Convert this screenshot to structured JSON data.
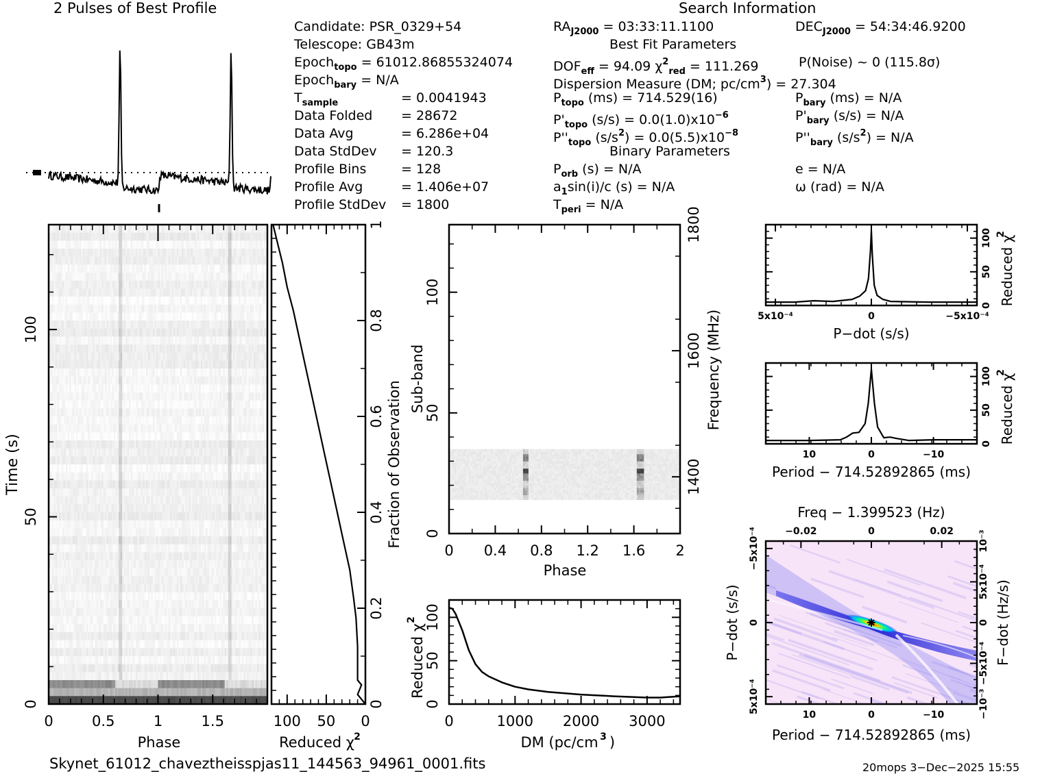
{
  "profile_title": "2 Pulses of Best Profile",
  "search_title": "Search Information",
  "candidate_info": [
    {
      "label": "Candidate:",
      "value": "PSR_0329+54"
    },
    {
      "label": "Telescope:",
      "value": "GB43m"
    },
    {
      "label": "Epoch",
      "sub": "topo",
      "value": "= 61012.86855324074"
    },
    {
      "label": "Epoch",
      "sub": "bary",
      "value": "= N/A"
    },
    {
      "label": "T",
      "sub": "sample",
      "value": "=   0.0041943"
    },
    {
      "label": "Data Folded",
      "value": "=   28672"
    },
    {
      "label": "Data Avg",
      "value": "=   6.286e+04"
    },
    {
      "label": "Data StdDev",
      "value": "=   120.3"
    },
    {
      "label": "Profile Bins",
      "value": "=   128"
    },
    {
      "label": "Profile Avg",
      "value": "=   1.406e+07"
    },
    {
      "label": "Profile StdDev",
      "value": "=   1800"
    }
  ],
  "search_info": {
    "ra": {
      "label": "RA",
      "sub": "J2000",
      "value": "= 03:33:11.1100"
    },
    "dec": {
      "label": "DEC",
      "sub": "J2000",
      "value": "= 54:34:46.9200"
    },
    "best_fit_title": "Best Fit Parameters",
    "dof": {
      "label": "DOF",
      "sub": "eff",
      "value": "= 94.09"
    },
    "chi2": {
      "label": "χ",
      "sup": "2",
      "sub": "red",
      "value": "= 111.269"
    },
    "pnoise": "P(Noise) ~ 0    (115.8σ)",
    "dm": {
      "label": "Dispersion Measure (DM; pc/cm",
      "sup": "3",
      "value": ") = 27.304"
    },
    "ptopo": {
      "label": "P",
      "sub": "topo",
      "value": " (ms) =  714.529(16)"
    },
    "pdtopo": {
      "label": "P'",
      "sub": "topo",
      "value": " (s/s) = 0.0(1.0)x10",
      "sup": "−6"
    },
    "pddtopo": {
      "label": "P''",
      "sub": "topo",
      "value": " (s/s",
      "sup2": "2",
      "value2": ") = 0.0(5.5)x10",
      "sup": "−8"
    },
    "pbary": {
      "label": "P",
      "sub": "bary",
      "value": " (ms) = N/A"
    },
    "pdbary": {
      "label": "P'",
      "sub": "bary",
      "value": " (s/s) = N/A"
    },
    "pddbary": {
      "label": "P''",
      "sub": "bary",
      "value": " (s/s",
      "sup2": "2",
      "value2": ") = N/A"
    },
    "binary_title": "Binary Parameters",
    "porb": {
      "label": "P",
      "sub": "orb",
      "value": " (s) = N/A"
    },
    "asini": {
      "label": "a",
      "sub": "1",
      "value": "sin(i)/c (s) = N/A"
    },
    "tperi": {
      "label": "T",
      "sub": "peri",
      "value": " = N/A"
    },
    "ecc": "e = N/A",
    "omega": "ω (rad) = N/A"
  },
  "footer": {
    "filename": "Skynet_61012_chaveztheisspjas11_144563_94961_0001.fits",
    "stamp": "20mops   3−Dec−2025 15:55"
  },
  "chart_data": [
    {
      "id": "time-phase",
      "type": "heatmap",
      "xlabel": "Phase",
      "ylabel": "Time (s)",
      "xlim": [
        0,
        2
      ],
      "ylim": [
        0,
        128
      ],
      "xticks": [
        "0",
        "0.5",
        "1",
        "1.5"
      ],
      "xtick_values": [
        0,
        0.5,
        1,
        1.5
      ],
      "yticks": [
        "0",
        "50",
        "100"
      ],
      "ytick_values": [
        0,
        50,
        100
      ],
      "pulse_phases": [
        0.65,
        1.65
      ]
    },
    {
      "id": "chi2-fraction",
      "type": "line",
      "xlabel": "Reduced χ²",
      "ylabel": "Fraction of Observation",
      "xlim": [
        120,
        0
      ],
      "ylim": [
        0,
        1
      ],
      "xticks": [
        "100",
        "50",
        "0"
      ],
      "xtick_values": [
        100,
        50,
        0
      ],
      "yticks": [
        "0",
        "0.2",
        "0.4",
        "0.6",
        "0.8",
        "1"
      ],
      "ytick_values": [
        0,
        0.2,
        0.4,
        0.6,
        0.8,
        1
      ],
      "x": [
        0,
        10,
        5,
        10,
        10,
        12,
        15,
        20,
        28,
        36,
        44,
        52,
        60,
        68,
        76,
        84,
        92,
        100,
        106,
        112,
        118
      ],
      "y": [
        0,
        0.02,
        0.04,
        0.05,
        0.12,
        0.18,
        0.22,
        0.28,
        0.34,
        0.4,
        0.46,
        0.52,
        0.58,
        0.64,
        0.7,
        0.76,
        0.82,
        0.87,
        0.92,
        0.96,
        1.0
      ]
    },
    {
      "id": "subband-phase",
      "type": "heatmap",
      "xlabel": "Phase",
      "ylabel": "Sub-band",
      "ylabel_right": "Frequency (MHz)",
      "xlim": [
        0,
        2
      ],
      "ylim": [
        0,
        128
      ],
      "xticks": [
        "0",
        "0.4",
        "0.8",
        "1.2",
        "1.6",
        "2"
      ],
      "xtick_values": [
        0,
        0.4,
        0.8,
        1.2,
        1.6,
        2
      ],
      "yticks": [
        "0",
        "50",
        "100"
      ],
      "ytick_values": [
        0,
        50,
        100
      ],
      "yticks_right": [
        "1400",
        "1600",
        "1800"
      ],
      "ytick_right_values": [
        1400,
        1600,
        1800
      ],
      "freq_range": [
        1310,
        1800
      ],
      "band_subbands": [
        14,
        35
      ],
      "pulse_phases": [
        0.65,
        1.65
      ]
    },
    {
      "id": "dm-chi2",
      "type": "line",
      "xlabel": "DM (pc/cm³)",
      "ylabel": "Reduced χ²",
      "xlim": [
        0,
        3500
      ],
      "ylim": [
        0,
        120
      ],
      "xticks": [
        "0",
        "1000",
        "2000",
        "3000"
      ],
      "xtick_values": [
        0,
        1000,
        2000,
        3000
      ],
      "yticks": [
        "0",
        "50",
        "100"
      ],
      "ytick_values": [
        0,
        50,
        100
      ],
      "x": [
        0,
        50,
        100,
        200,
        300,
        400,
        500,
        600,
        800,
        1000,
        1200,
        1500,
        2000,
        2500,
        3000,
        3200,
        3500
      ],
      "y": [
        111,
        110,
        104,
        85,
        62,
        46,
        37,
        32,
        25,
        20,
        17,
        14,
        11,
        9,
        7.5,
        7.5,
        9
      ]
    },
    {
      "id": "pdot-chi2",
      "type": "line",
      "xlabel": "P−dot (s/s)",
      "ylabel": "Reduced χ²",
      "xlim": [
        0.00055,
        -0.00055
      ],
      "ylim": [
        0,
        120
      ],
      "xticks": [
        "5x10⁻⁴",
        "0",
        "−5x10⁻⁴"
      ],
      "xtick_values": [
        0.0005,
        0,
        -0.0005
      ],
      "yticks": [
        "0",
        "50",
        "100"
      ],
      "ytick_values": [
        0,
        50,
        100
      ],
      "x": [
        0.00055,
        0.0004,
        0.0003,
        0.0002,
        0.0001,
        6e-05,
        3e-05,
        1.5e-05,
        5e-06,
        0,
        -5e-06,
        -1.5e-05,
        -3e-05,
        -6e-05,
        -0.0001,
        -0.0003,
        -0.00055
      ],
      "y": [
        5,
        5,
        7,
        6,
        9,
        14,
        22,
        40,
        80,
        111,
        75,
        30,
        15,
        9,
        6,
        5,
        5
      ]
    },
    {
      "id": "period-chi2",
      "type": "line",
      "xlabel": "Period − 714.52892865 (ms)",
      "ylabel": "Reduced χ²",
      "xlim": [
        17,
        -17
      ],
      "ylim": [
        0,
        120
      ],
      "xticks": [
        "10",
        "0",
        "−10"
      ],
      "xtick_values": [
        10,
        0,
        -10
      ],
      "yticks": [
        "0",
        "50",
        "100"
      ],
      "ytick_values": [
        0,
        50,
        100
      ],
      "x": [
        17,
        10,
        5,
        4,
        3,
        2,
        1,
        0.5,
        0,
        -0.5,
        -1,
        -2,
        -3,
        -4,
        -6,
        -10,
        -17
      ],
      "y": [
        5,
        5,
        6,
        10,
        16,
        17,
        30,
        60,
        111,
        60,
        25,
        9,
        10,
        8,
        5,
        6,
        6
      ]
    },
    {
      "id": "ppdot-map",
      "type": "heatmap",
      "xlabel": "Period − 714.52892865 (ms)",
      "ylabel": "P−dot (s/s)",
      "top_label": "Freq − 1.399523 (Hz)",
      "right_label": "F−dot (Hz/s)",
      "xlim": [
        17,
        -17
      ],
      "ylim": [
        0.00055,
        -0.00055
      ],
      "xticks": [
        "10",
        "0",
        "−10"
      ],
      "xtick_values": [
        10,
        0,
        -10
      ],
      "top_ticks": [
        "−0.02",
        "0",
        "0.02"
      ],
      "top_tick_values": [
        -0.02,
        0,
        0.02
      ],
      "yticks": [
        "5x10⁻⁴",
        "0",
        "−5x10⁻⁴"
      ],
      "ytick_values": [
        0.0005,
        0,
        -0.0005
      ],
      "right_ticks": [
        "−10⁻³",
        "−5x10⁻⁴",
        "0",
        "5x10⁻⁴",
        "10⁻³"
      ],
      "right_tick_values": [
        -0.001,
        -0.0005,
        0,
        0.0005,
        0.001
      ],
      "best": [
        0,
        0
      ],
      "colors": {
        "low": "#f8e4f8",
        "mid": "#2020e0",
        "high": "#00ff80",
        "peak": "#ff3000"
      }
    }
  ]
}
